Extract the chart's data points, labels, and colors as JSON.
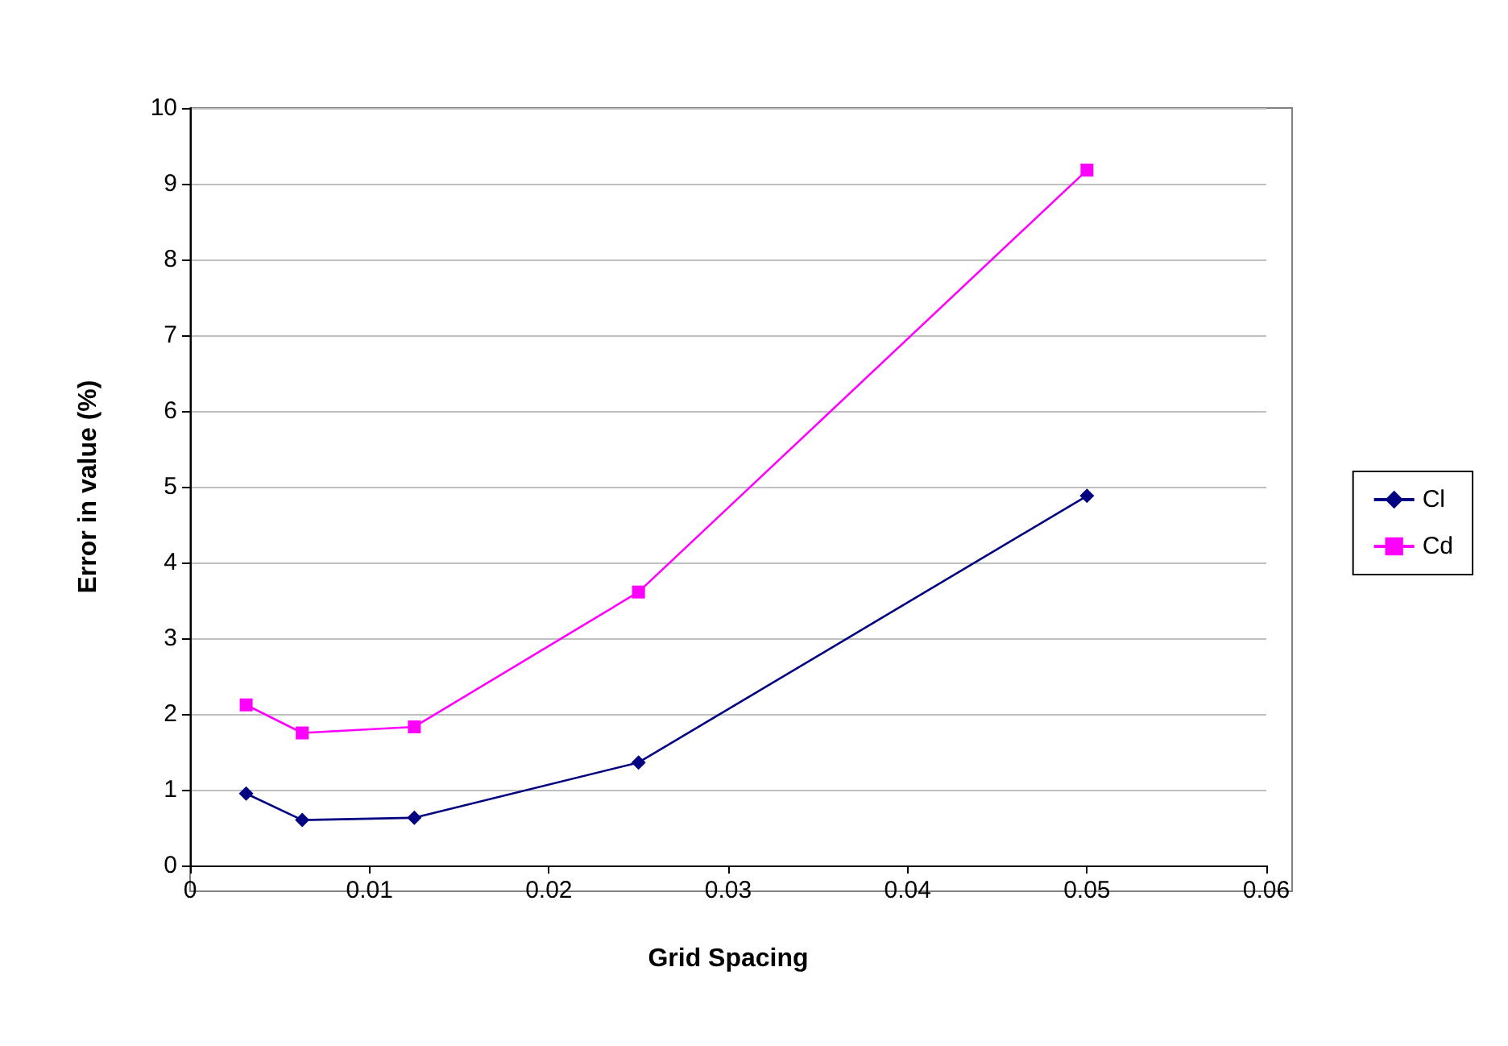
{
  "chart_data": {
    "type": "line",
    "xlabel": "Grid Spacing",
    "ylabel": "Error in value (%)",
    "x": [
      0.003125,
      0.00625,
      0.0125,
      0.025,
      0.05
    ],
    "series": [
      {
        "name": "Cl",
        "color": "#000080",
        "marker": "diamond",
        "values": [
          0.95,
          0.6,
          0.63,
          1.36,
          4.88
        ]
      },
      {
        "name": "Cd",
        "color": "#ff00ff",
        "marker": "square",
        "values": [
          2.12,
          1.75,
          1.83,
          3.61,
          9.18
        ]
      }
    ],
    "xlim": [
      0,
      0.06
    ],
    "xticks": [
      0,
      0.01,
      0.02,
      0.03,
      0.04,
      0.05,
      0.06
    ],
    "ylim": [
      0,
      10
    ],
    "yticks": [
      0,
      1,
      2,
      3,
      4,
      5,
      6,
      7,
      8,
      9,
      10
    ],
    "grid": "y",
    "legend": "right",
    "line_style": "solid"
  }
}
